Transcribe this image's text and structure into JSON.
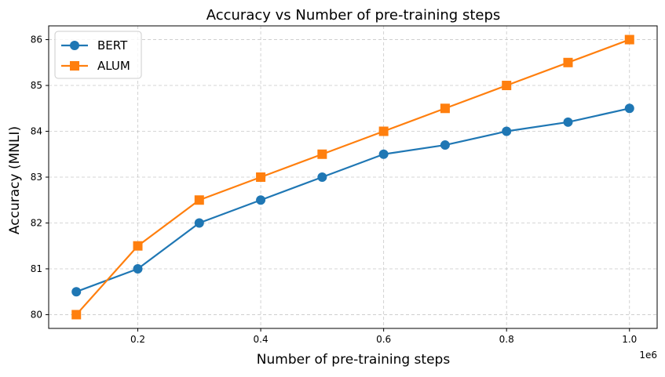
{
  "chart_data": {
    "type": "line",
    "title": "Accuracy vs Number of pre-training steps",
    "xlabel": "Number of pre-training steps",
    "ylabel": "Accuracy (MNLI)",
    "x_offset_label": "1e6",
    "x_scale": 1000000,
    "x": [
      100000,
      200000,
      300000,
      400000,
      500000,
      600000,
      700000,
      800000,
      900000,
      1000000
    ],
    "series": [
      {
        "name": "BERT",
        "values": [
          80.5,
          81.0,
          82.0,
          82.5,
          83.0,
          83.5,
          83.7,
          84.0,
          84.2,
          84.5
        ],
        "color": "#1f77b4",
        "marker": "circle"
      },
      {
        "name": "ALUM",
        "values": [
          80.0,
          81.5,
          82.5,
          83.0,
          83.5,
          84.0,
          84.5,
          85.0,
          85.5,
          86.0
        ],
        "color": "#ff7f0e",
        "marker": "square"
      }
    ],
    "xlim": [
      55000,
      1045000
    ],
    "ylim": [
      79.7,
      86.3
    ],
    "x_ticks": [
      200000,
      400000,
      600000,
      800000,
      1000000
    ],
    "x_tick_labels": [
      "0.2",
      "0.4",
      "0.6",
      "0.8",
      "1.0"
    ],
    "y_ticks": [
      80,
      81,
      82,
      83,
      84,
      85,
      86
    ],
    "y_tick_labels": [
      "80",
      "81",
      "82",
      "83",
      "84",
      "85",
      "86"
    ],
    "grid": true,
    "legend_position": "upper left"
  }
}
